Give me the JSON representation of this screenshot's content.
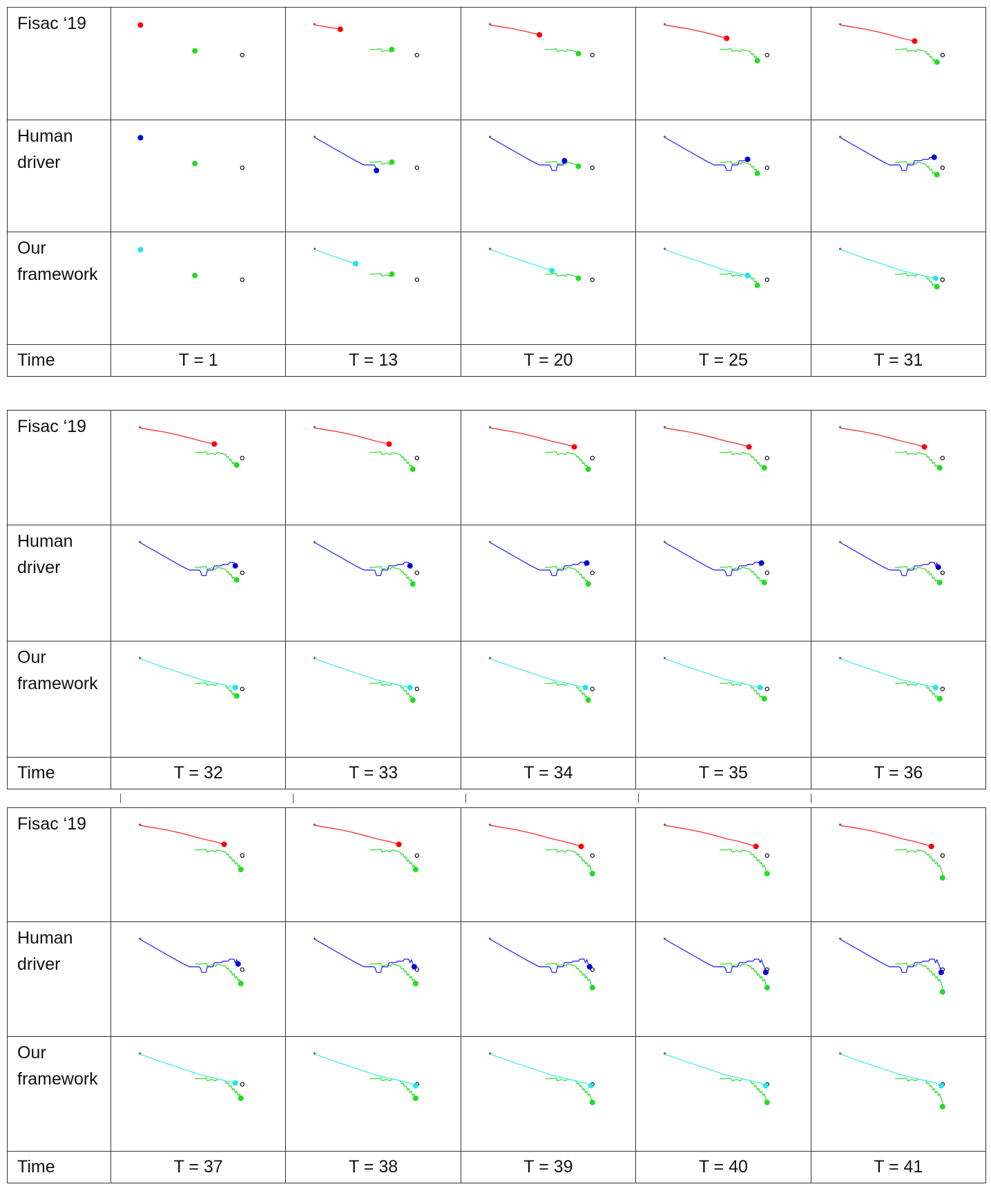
{
  "figure": {
    "row_labels": {
      "fisac": "Fisac ‘19",
      "human": "Human\ndriver",
      "ours": "Our\nframework",
      "time": "Time"
    },
    "methods": [
      {
        "key": "fisac",
        "color": "#ff1a1a",
        "marker_color": "#ff0000"
      },
      {
        "key": "human",
        "color": "#1a1aff",
        "marker_color": "#0000e0"
      },
      {
        "key": "ours",
        "color": "#33eef0",
        "marker_color": "#22e5f0"
      }
    ],
    "other_vehicle_color": "#22dd22",
    "start_marker_color": "#000000",
    "goal_marker_color": "#000000",
    "blocks": [
      {
        "times": [
          "T = 1",
          "T = 13",
          "T = 20",
          "T = 25",
          "T = 31"
        ],
        "steps": [
          1,
          13,
          20,
          25,
          31
        ]
      },
      {
        "times": [
          "T = 32",
          "T = 33",
          "T = 34",
          "T = 35",
          "T = 36"
        ],
        "steps": [
          32,
          33,
          34,
          35,
          36
        ]
      },
      {
        "times": [
          "T = 37",
          "T = 38",
          "T = 39",
          "T = 40",
          "T = 41"
        ],
        "steps": [
          37,
          38,
          39,
          40,
          41
        ]
      }
    ]
  }
}
